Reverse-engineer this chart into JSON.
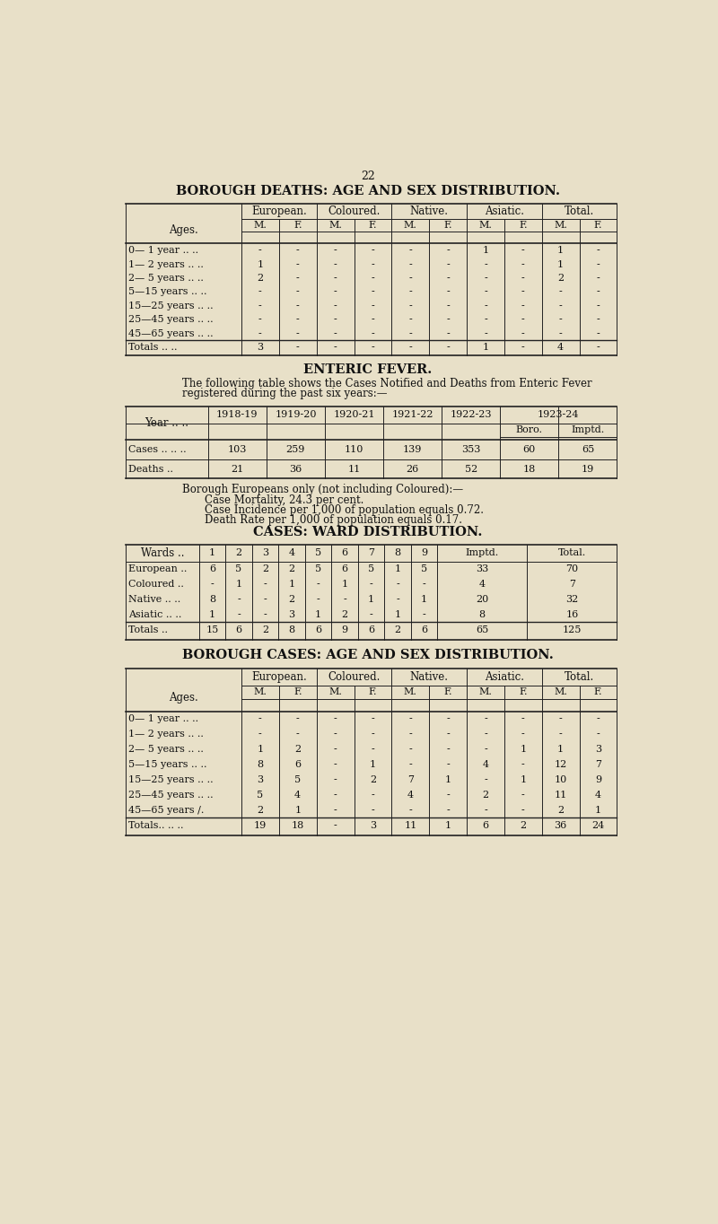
{
  "bg_color": "#e8e0c8",
  "text_color": "#1a1a1a",
  "page_number": "22",
  "title1": "BOROUGH DEATHS: AGE AND SEX DISTRIBUTION.",
  "deaths_table": {
    "col_groups": [
      "European.",
      "Coloured.",
      "Native.",
      "Asiatic.",
      "Total."
    ],
    "row_labels": [
      "0— 1 year",
      "1— 2 years",
      "2— 5 years",
      "5—15 years",
      "15—25 years",
      "25—45 years",
      "45—65 years"
    ],
    "row_label_dots": [
      " .. ..",
      " .. ..",
      " .. ..",
      " .. ..",
      " .. ..",
      " .. ..",
      " .. .."
    ],
    "data": [
      [
        "-",
        "-",
        "-",
        "-",
        "-",
        "-",
        "1",
        "-",
        "1",
        "-"
      ],
      [
        "1",
        "-",
        "-",
        "-",
        "-",
        "-",
        "-",
        "-",
        "1",
        "-"
      ],
      [
        "2",
        "-",
        "-",
        "-",
        "-",
        "-",
        "-",
        "-",
        "2",
        "-"
      ],
      [
        "-",
        "-",
        "-",
        "-",
        "-",
        "-",
        "-",
        "-",
        "-",
        "-"
      ],
      [
        "-",
        "-",
        "-",
        "-",
        "-",
        "-",
        "-",
        "-",
        "-",
        "-"
      ],
      [
        "-",
        "-",
        "-",
        "-",
        "-",
        "-",
        "-",
        "-",
        "-",
        "-"
      ],
      [
        "-",
        "-",
        "-",
        "-",
        "-",
        "-",
        "-",
        "-",
        "-",
        "-"
      ]
    ],
    "totals": [
      "3",
      "-",
      "-",
      "-",
      "-",
      "-",
      "1",
      "-",
      "4",
      "-"
    ]
  },
  "enteric_title": "ENTERIC FEVER.",
  "enteric_text1": "The following table shows the Cases Notified and Deaths from Enteric Fever",
  "enteric_text2": "registered during the past six years:—",
  "fever_table": {
    "years": [
      "1918-19",
      "1919-20",
      "1920-21",
      "1921-22",
      "1922-23"
    ],
    "last_year": "1923-24",
    "last_year_sub": [
      "Boro.",
      "Imptd."
    ],
    "rows": [
      {
        "label": "Cases ..",
        "label2": ".. ..",
        "values": [
          "103",
          "259",
          "110",
          "139",
          "353",
          "60",
          "65"
        ]
      },
      {
        "label": "Deaths",
        "label2": "..",
        "values": [
          "21",
          "36",
          "11",
          "26",
          "52",
          "18",
          "19"
        ]
      }
    ]
  },
  "borough_text": "Borough Europeans only (not including Coloured):—",
  "stats": [
    "Case Mortality, 24.3 per cent.",
    "Case Incidence per 1,000 of population equals 0.72.",
    "Death Rate per 1,000 of population equals 0.17."
  ],
  "ward_title": "CASES: WARD DISTRIBUTION.",
  "ward_table": {
    "wards": [
      "1",
      "2",
      "3",
      "4",
      "5",
      "6",
      "7",
      "8",
      "9",
      "Imptd.",
      "Total."
    ],
    "rows": [
      {
        "label": "European",
        "label2": "..",
        "values": [
          "6",
          "5",
          "2",
          "2",
          "5",
          "6",
          "5",
          "1",
          "5",
          "33",
          "70"
        ]
      },
      {
        "label": "Coloured",
        "label2": "..",
        "values": [
          "-",
          "1",
          "-",
          "1",
          "-",
          "1",
          "-",
          "-",
          "-",
          "4",
          "7"
        ]
      },
      {
        "label": "Native ..",
        "label2": "..",
        "values": [
          "8",
          "-",
          "-",
          "2",
          "-",
          "-",
          "1",
          "-",
          "1",
          "20",
          "32"
        ]
      },
      {
        "label": "Asiatic ..",
        "label2": "..",
        "values": [
          "1",
          "-",
          "-",
          "3",
          "1",
          "2",
          "-",
          "1",
          "-",
          "8",
          "16"
        ]
      },
      {
        "label": "Totals",
        "label2": "..",
        "values": [
          "15",
          "6",
          "2",
          "8",
          "6",
          "9",
          "6",
          "2",
          "6",
          "65",
          "125"
        ]
      }
    ]
  },
  "title2": "BOROUGH CASES: AGE AND SEX DISTRIBUTION.",
  "cases_table": {
    "col_groups": [
      "European.",
      "Coloured.",
      "Native.",
      "Asiatic.",
      "Total."
    ],
    "row_labels": [
      "0— 1 year",
      "1— 2 years",
      "2— 5 years",
      "5—15 years",
      "15—25 years",
      "25—45 years",
      "45—65 years"
    ],
    "row_label_dots": [
      " .. ..",
      " .. ..",
      " .. ..",
      " .. ..",
      " .. ..",
      " .. ..",
      " /."
    ],
    "data": [
      [
        "-",
        "-",
        "-",
        "-",
        "-",
        "-",
        "-",
        "-",
        "-",
        "-"
      ],
      [
        "-",
        "-",
        "-",
        "-",
        "-",
        "-",
        "-",
        "-",
        "-",
        "-"
      ],
      [
        "1",
        "2",
        "-",
        "-",
        "-",
        "-",
        "-",
        "1",
        "1",
        "3"
      ],
      [
        "8",
        "6",
        "-",
        "1",
        "-",
        "-",
        "4",
        "-",
        "12",
        "7"
      ],
      [
        "3",
        "5",
        "-",
        "2",
        "7",
        "1",
        "-",
        "1",
        "10",
        "9"
      ],
      [
        "5",
        "4",
        "-",
        "-",
        "4",
        "-",
        "2",
        "-",
        "11",
        "4"
      ],
      [
        "2",
        "1",
        "-",
        "-",
        "-",
        "-",
        "-",
        "-",
        "2",
        "1"
      ]
    ],
    "totals": [
      "19",
      "18",
      "-",
      "3",
      "11",
      "1",
      "6",
      "2",
      "36",
      "24"
    ]
  }
}
